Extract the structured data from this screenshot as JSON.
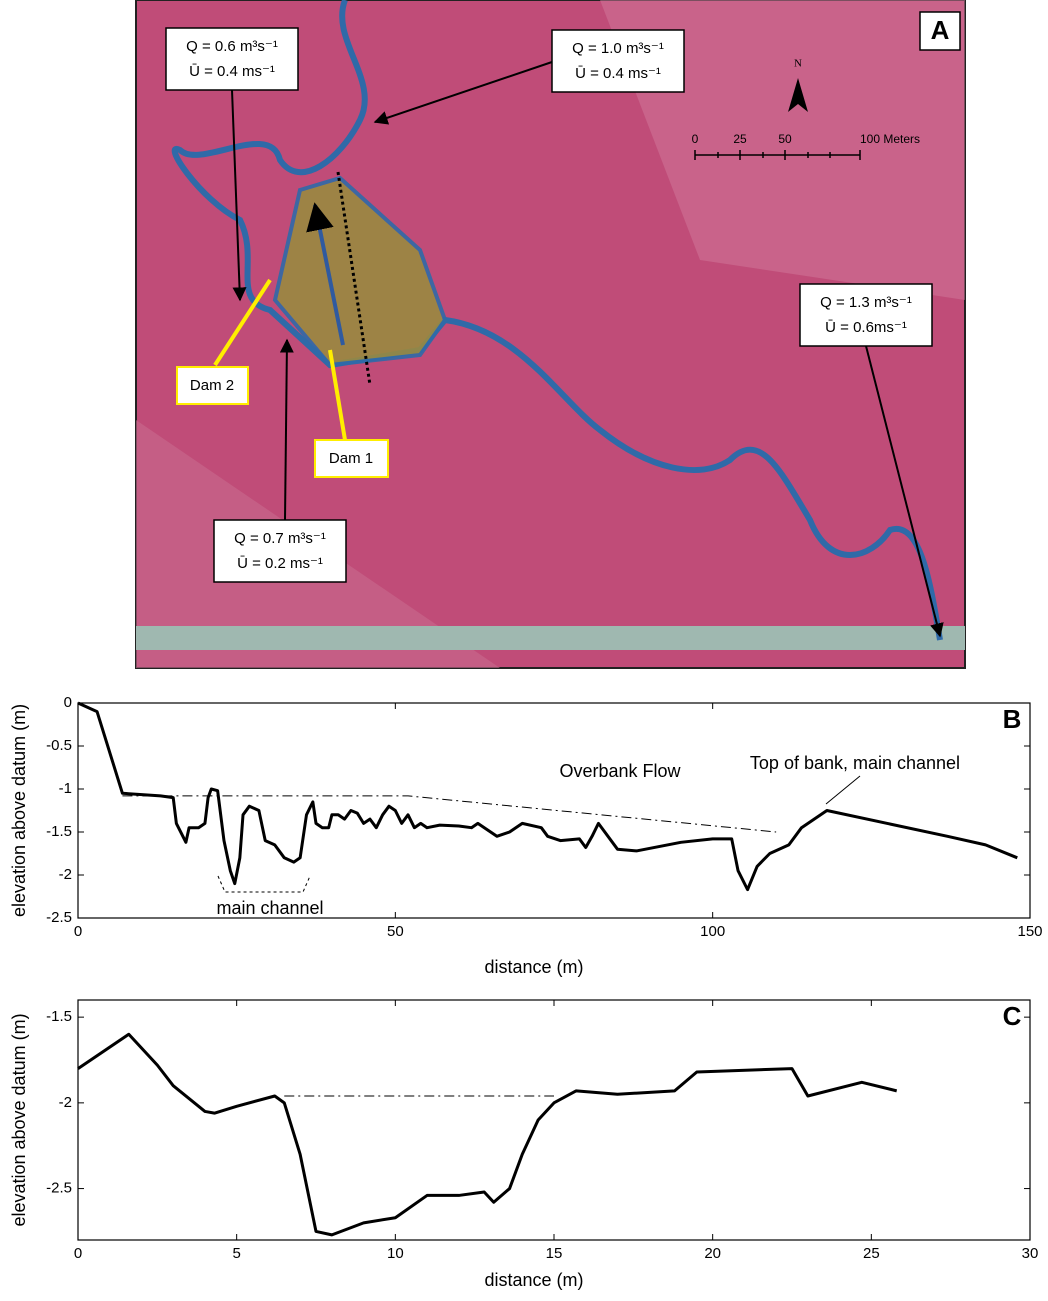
{
  "map": {
    "panel_label": "A",
    "north": "N",
    "scale_labels": [
      "0",
      "25",
      "50",
      "100 Meters"
    ],
    "flow_labels": [
      {
        "q": "Q = 0.6 m³s⁻¹",
        "u": "Ū = 0.4 ms⁻¹"
      },
      {
        "q": "Q = 1.0 m³s⁻¹",
        "u": "Ū = 0.4 ms⁻¹"
      },
      {
        "q": "Q = 1.3 m³s⁻¹",
        "u": "Ū = 0.6ms⁻¹"
      },
      {
        "q": "Q = 0.7 m³s⁻¹",
        "u": "Ū = 0.2 ms⁻¹"
      }
    ],
    "dams": [
      "Dam 2",
      "Dam 1"
    ]
  },
  "chart_data": [
    {
      "type": "line",
      "panel_label": "B",
      "xlabel": "distance (m)",
      "ylabel": "elevation above datum (m)",
      "xlim": [
        0,
        150
      ],
      "xticks": [
        0,
        50,
        100,
        150
      ],
      "ylim": [
        -2.5,
        0
      ],
      "yticks": [
        -2.5,
        -2,
        -1.5,
        -1,
        -0.5,
        0
      ],
      "annotations": [
        "Overbank Flow",
        "main channel",
        "Top of bank, main channel"
      ],
      "series": [
        {
          "color": "#000000",
          "width": 3,
          "x": [
            0,
            3,
            7,
            13,
            15,
            15.5,
            17,
            17.5,
            19,
            20,
            20.5,
            21,
            22,
            23,
            24,
            24.7,
            25.5,
            26,
            27,
            28.5,
            29.5,
            31,
            32.5,
            34,
            35,
            36,
            37,
            37.5,
            38.5,
            39.5,
            40,
            41,
            42,
            43,
            44,
            45,
            46,
            47,
            48,
            49,
            50,
            51,
            52,
            53,
            54,
            55,
            57,
            60,
            62,
            63,
            66,
            68,
            70,
            73,
            74,
            76,
            79,
            80,
            81,
            82,
            85,
            88,
            95,
            100,
            103,
            104,
            105.5,
            107,
            109,
            112,
            114,
            118,
            137,
            143,
            148
          ],
          "values": [
            0,
            -0.1,
            -1.05,
            -1.08,
            -1.1,
            -1.4,
            -1.62,
            -1.45,
            -1.45,
            -1.4,
            -1.1,
            -1.0,
            -1.02,
            -1.6,
            -1.95,
            -2.1,
            -1.8,
            -1.3,
            -1.2,
            -1.25,
            -1.6,
            -1.65,
            -1.8,
            -1.85,
            -1.8,
            -1.3,
            -1.15,
            -1.4,
            -1.45,
            -1.45,
            -1.3,
            -1.3,
            -1.35,
            -1.25,
            -1.28,
            -1.4,
            -1.35,
            -1.45,
            -1.3,
            -1.2,
            -1.25,
            -1.4,
            -1.3,
            -1.45,
            -1.4,
            -1.45,
            -1.42,
            -1.43,
            -1.45,
            -1.4,
            -1.55,
            -1.5,
            -1.4,
            -1.45,
            -1.55,
            -1.6,
            -1.58,
            -1.68,
            -1.55,
            -1.4,
            -1.7,
            -1.72,
            -1.62,
            -1.58,
            -1.58,
            -1.95,
            -2.17,
            -1.9,
            -1.75,
            -1.65,
            -1.45,
            -1.25,
            -1.55,
            -1.65,
            -1.8
          ]
        },
        {
          "color": "#000000",
          "width": 1,
          "dash": true,
          "x": [
            7,
            52,
            110
          ],
          "values": [
            -1.08,
            -1.08,
            -1.5
          ]
        }
      ]
    },
    {
      "type": "line",
      "panel_label": "C",
      "xlabel": "distance (m)",
      "ylabel": "elevation above datum (m)",
      "xlim": [
        0,
        30
      ],
      "xticks": [
        0,
        5,
        10,
        15,
        20,
        25,
        30
      ],
      "ylim": [
        -2.8,
        -1.4
      ],
      "yticks": [
        -2.5,
        -2,
        -1.5
      ],
      "annotations": [],
      "series": [
        {
          "color": "#000000",
          "width": 3,
          "x": [
            0,
            1.6,
            2.5,
            3,
            4,
            4.3,
            5,
            6.2,
            6.5,
            7,
            7.5,
            8,
            9,
            10,
            11,
            12,
            12.8,
            13.1,
            13.6,
            14,
            14.5,
            15,
            15.7,
            17,
            18.8,
            19.5,
            22.5,
            23,
            24.7,
            25.8
          ],
          "values": [
            -1.8,
            -1.6,
            -1.78,
            -1.9,
            -2.05,
            -2.06,
            -2.02,
            -1.96,
            -2.0,
            -2.3,
            -2.75,
            -2.77,
            -2.7,
            -2.67,
            -2.54,
            -2.54,
            -2.52,
            -2.58,
            -2.5,
            -2.3,
            -2.1,
            -2.0,
            -1.93,
            -1.95,
            -1.93,
            -1.82,
            -1.8,
            -1.96,
            -1.88,
            -1.93
          ]
        },
        {
          "color": "#000000",
          "width": 1,
          "dash": true,
          "x": [
            6.5,
            15
          ],
          "values": [
            -1.96,
            -1.96
          ]
        }
      ]
    }
  ]
}
